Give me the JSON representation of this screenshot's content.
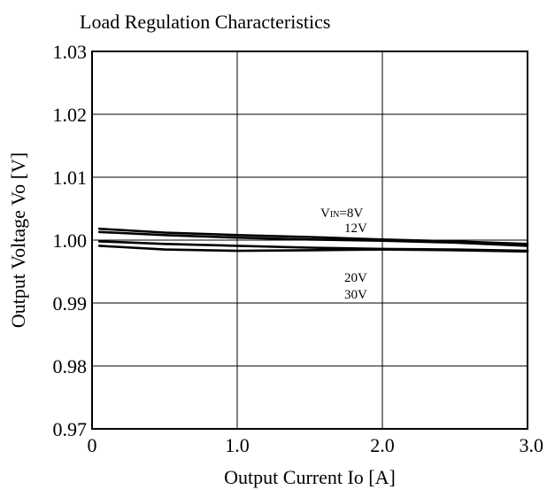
{
  "chart_data": {
    "type": "line",
    "title": "Load Regulation Characteristics",
    "xlabel": "Output Current Io [A]",
    "ylabel": "Output Voltage Vo [V]",
    "xlim": [
      0,
      3.0
    ],
    "ylim": [
      0.97,
      1.03
    ],
    "xticks": [
      0,
      1.0,
      2.0,
      3.0
    ],
    "xtick_labels": [
      "0",
      "1.0",
      "2.0",
      "3.0"
    ],
    "yticks": [
      0.97,
      0.98,
      0.99,
      1.0,
      1.01,
      1.02,
      1.03
    ],
    "ytick_labels": [
      "0.97",
      "0.98",
      "0.99",
      "1.00",
      "1.01",
      "1.02",
      "1.03"
    ],
    "grid": true,
    "series": [
      {
        "name": "VIN=8V",
        "x": [
          0.05,
          0.5,
          1.0,
          1.5,
          2.0,
          2.5,
          3.0
        ],
        "y": [
          1.0018,
          1.0012,
          1.0008,
          1.0005,
          1.0001,
          0.9998,
          0.9994
        ]
      },
      {
        "name": "12V",
        "x": [
          0.05,
          0.5,
          1.0,
          1.5,
          2.0,
          2.5,
          3.0
        ],
        "y": [
          1.0013,
          1.0008,
          1.0004,
          1.0001,
          0.9999,
          0.9996,
          0.9991
        ]
      },
      {
        "name": "20V",
        "x": [
          0.05,
          0.5,
          1.0,
          1.5,
          2.0,
          2.5,
          3.0
        ],
        "y": [
          0.9998,
          0.9994,
          0.9991,
          0.9988,
          0.9986,
          0.9985,
          0.9983
        ]
      },
      {
        "name": "30V",
        "x": [
          0.05,
          0.5,
          1.0,
          1.5,
          2.0,
          2.5,
          3.0
        ],
        "y": [
          0.9991,
          0.9985,
          0.9983,
          0.9984,
          0.9985,
          0.9984,
          0.9982
        ]
      }
    ],
    "annotations": {
      "vin_prefix": "V",
      "vin_sub": "IN",
      "vin_value": "=8V",
      "v12": "12V",
      "v20": "20V",
      "v30": "30V"
    }
  }
}
